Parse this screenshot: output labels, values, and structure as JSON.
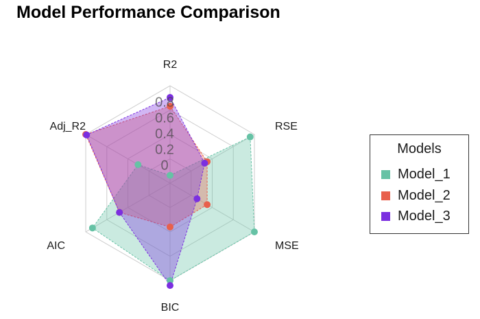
{
  "chart_data": {
    "type": "radar",
    "title": "Model Performance Comparison",
    "axes": [
      "R2",
      "RSE",
      "MSE",
      "BIC",
      "AIC",
      "Adj_R2"
    ],
    "radial_ticks": [
      "0",
      "0.2",
      "0.4",
      "0.6",
      "0.8"
    ],
    "grid": true,
    "legend": {
      "title": "Models",
      "position": "right"
    },
    "series": [
      {
        "name": "Model_1",
        "color": "#66C2A5",
        "values": [
          0.08,
          0.95,
          1.0,
          1.0,
          0.92,
          0.38
        ]
      },
      {
        "name": "Model_2",
        "color": "#E8604C",
        "values": [
          0.79,
          0.44,
          0.44,
          0.45,
          0.6,
          1.0
        ]
      },
      {
        "name": "Model_3",
        "color": "#7B2FE0",
        "values": [
          0.88,
          0.41,
          0.32,
          1.05,
          0.6,
          0.99
        ]
      }
    ]
  }
}
